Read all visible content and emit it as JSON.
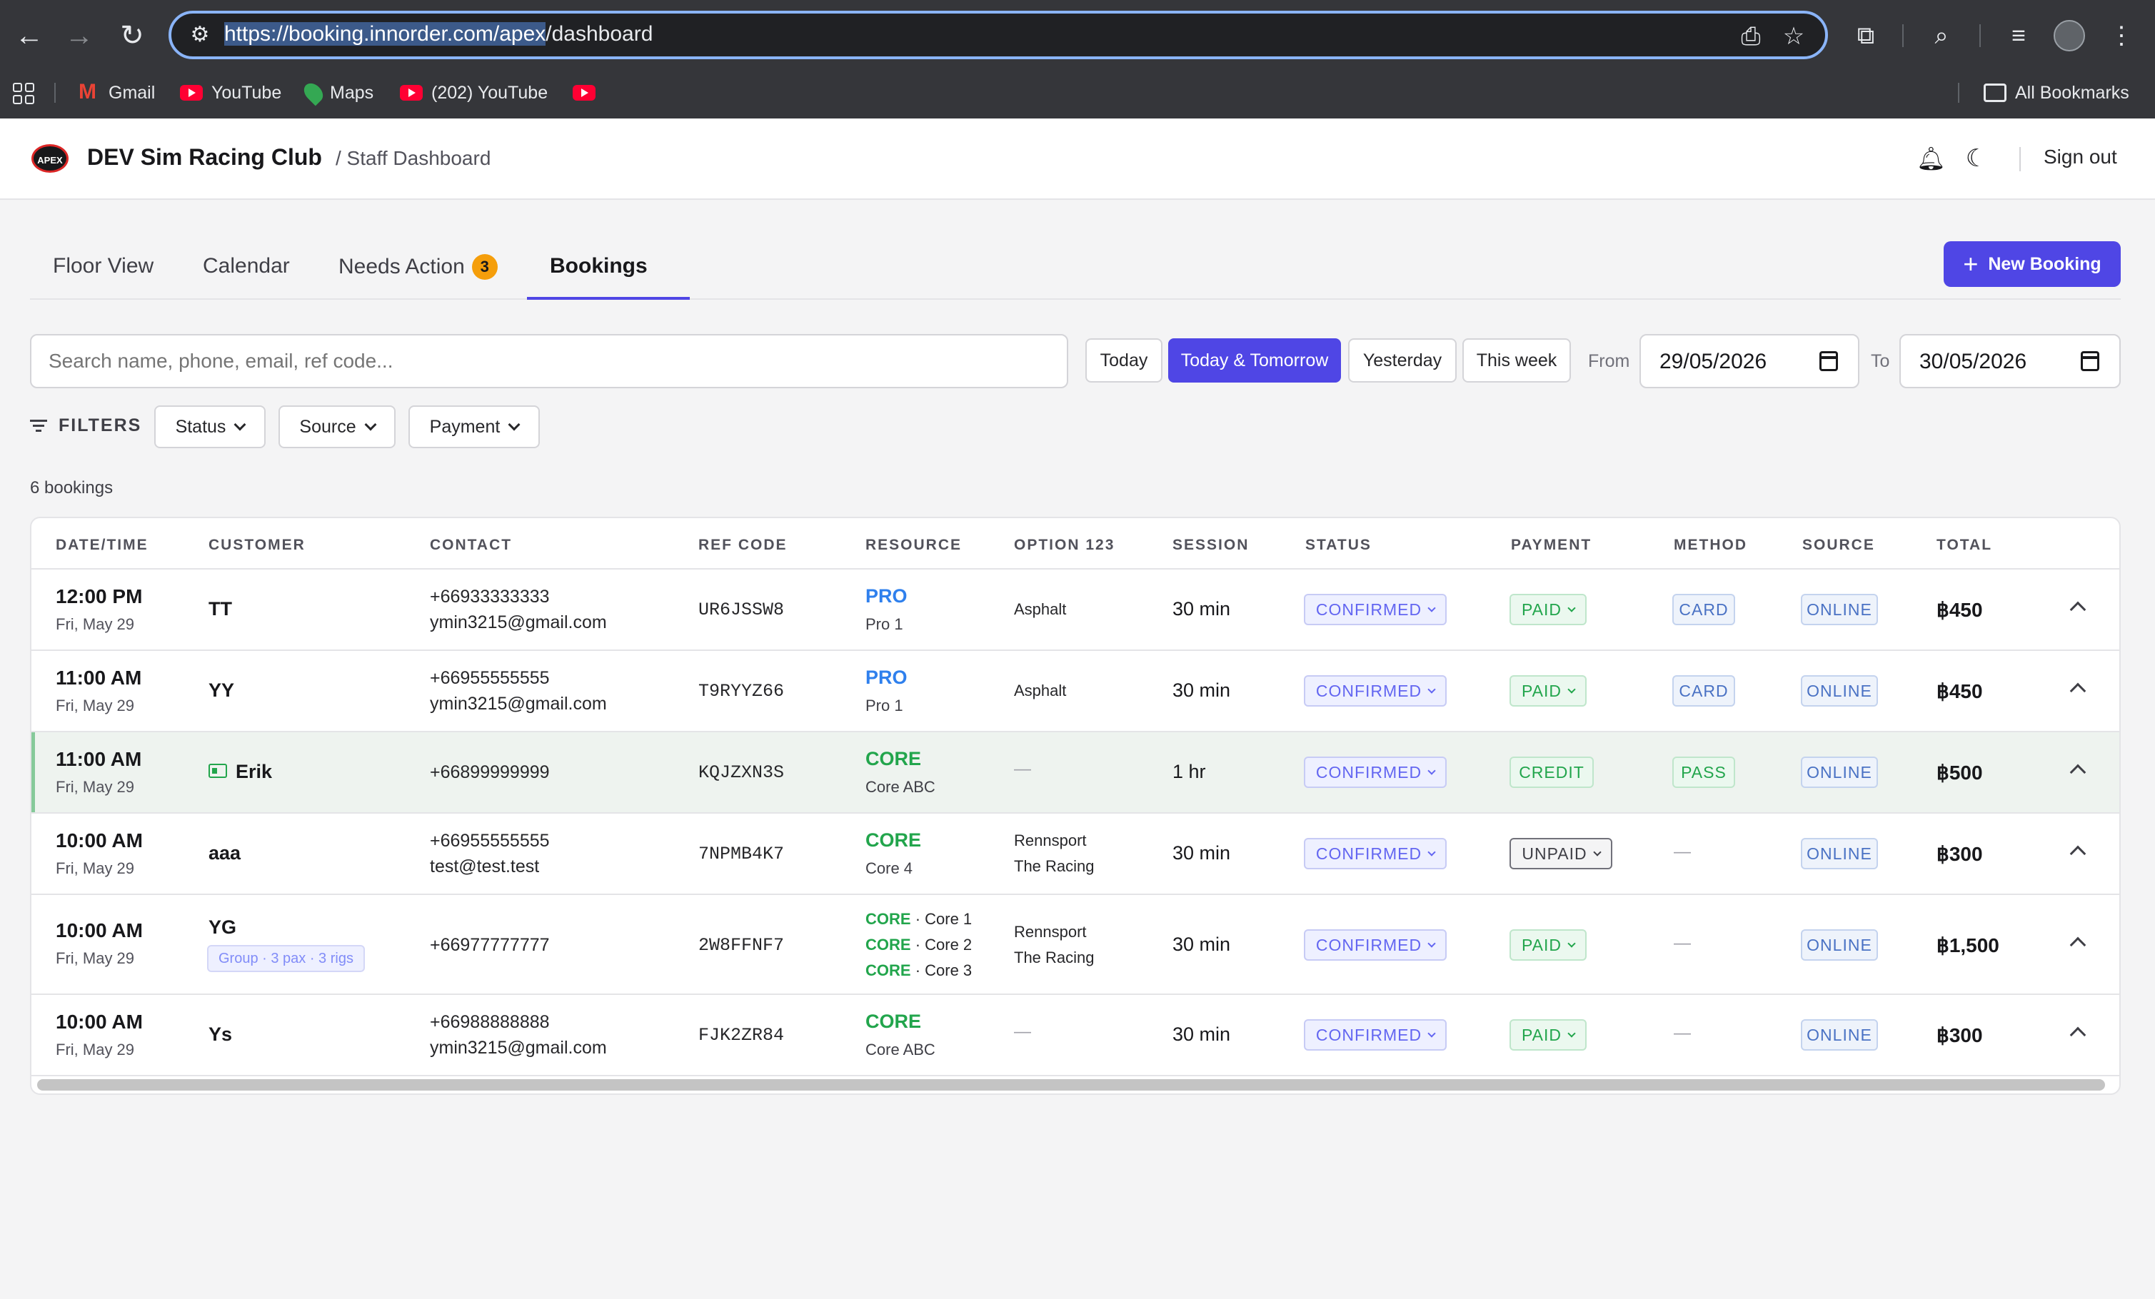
{
  "browser": {
    "url_selected": "https://booking.innorder.com/apex",
    "url_rest": "/dashboard",
    "bookmarks": [
      {
        "label": "Gmail",
        "icon": "gmail-icon"
      },
      {
        "label": "YouTube",
        "icon": "youtube-icon"
      },
      {
        "label": "Maps",
        "icon": "maps-icon"
      },
      {
        "label": "(202) YouTube",
        "icon": "youtube-icon"
      },
      {
        "label": "",
        "icon": "youtube-icon"
      }
    ],
    "all_bookmarks": "All Bookmarks"
  },
  "header": {
    "logo_text": "APEX",
    "club_name": "DEV Sim Racing Club",
    "breadcrumb": "/ Staff Dashboard",
    "sign_out": "Sign out"
  },
  "tabs": [
    {
      "label": "Floor View"
    },
    {
      "label": "Calendar"
    },
    {
      "label": "Needs Action",
      "badge": "3"
    },
    {
      "label": "Bookings",
      "active": true
    }
  ],
  "new_booking_label": "New Booking",
  "search": {
    "placeholder": "Search name, phone, email, ref code..."
  },
  "quick_ranges": [
    "Today",
    "Today & Tomorrow",
    "Yesterday",
    "This week"
  ],
  "date_range": {
    "from_label": "From",
    "from": "29/05/2026",
    "to_label": "To",
    "to": "30/05/2026"
  },
  "filters": {
    "label": "FILTERS",
    "buttons": [
      "Status",
      "Source",
      "Payment"
    ]
  },
  "count_text": "6 bookings",
  "table": {
    "columns": [
      "DATE/TIME",
      "CUSTOMER",
      "CONTACT",
      "REF CODE",
      "RESOURCE",
      "OPTION 123",
      "SESSION",
      "STATUS",
      "PAYMENT",
      "METHOD",
      "SOURCE",
      "TOTAL"
    ],
    "rows": [
      {
        "time": "12:00 PM",
        "date": "Fri, May 29",
        "customer": "TT",
        "phone": "+66933333333",
        "email": "ymin3215@gmail.com",
        "ref": "UR6JSSW8",
        "res_type": "PRO",
        "res_name": "Pro 1",
        "option1": "Asphalt",
        "option2": "",
        "session": "30 min",
        "status": "CONFIRMED",
        "payment": "PAID",
        "method": "CARD",
        "source": "ONLINE",
        "total": "฿450"
      },
      {
        "time": "11:00 AM",
        "date": "Fri, May 29",
        "customer": "YY",
        "phone": "+66955555555",
        "email": "ymin3215@gmail.com",
        "ref": "T9RYYZ66",
        "res_type": "PRO",
        "res_name": "Pro 1",
        "option1": "Asphalt",
        "option2": "",
        "session": "30 min",
        "status": "CONFIRMED",
        "payment": "PAID",
        "method": "CARD",
        "source": "ONLINE",
        "total": "฿450"
      },
      {
        "time": "11:00 AM",
        "date": "Fri, May 29",
        "customer": "Erik",
        "phone": "+66899999999",
        "email": "",
        "ref": "KQJZXN3S",
        "res_type": "CORE",
        "res_name": "Core ABC",
        "option1": "—",
        "option2": "",
        "session": "1 hr",
        "status": "CONFIRMED",
        "payment": "CREDIT",
        "method": "PASS",
        "source": "ONLINE",
        "total": "฿500"
      },
      {
        "time": "10:00 AM",
        "date": "Fri, May 29",
        "customer": "aaa",
        "phone": "+66955555555",
        "email": "test@test.test",
        "ref": "7NPMB4K7",
        "res_type": "CORE",
        "res_name": "Core 4",
        "option1": "Rennsport",
        "option2": "The Racing",
        "session": "30 min",
        "status": "CONFIRMED",
        "payment": "UNPAID",
        "method": "—",
        "source": "ONLINE",
        "total": "฿300"
      },
      {
        "time": "10:00 AM",
        "date": "Fri, May 29",
        "customer": "YG",
        "group": "Group · 3 pax · 3 rigs",
        "phone": "+66977777777",
        "email": "",
        "ref": "2W8FFNF7",
        "res_lines": [
          {
            "type": "CORE",
            "name": "· Core 1"
          },
          {
            "type": "CORE",
            "name": "· Core 2"
          },
          {
            "type": "CORE",
            "name": "· Core 3"
          }
        ],
        "option1": "Rennsport",
        "option2": "The Racing",
        "session": "30 min",
        "status": "CONFIRMED",
        "payment": "PAID",
        "method": "—",
        "source": "ONLINE",
        "total": "฿1,500"
      },
      {
        "time": "10:00 AM",
        "date": "Fri, May 29",
        "customer": "Ys",
        "phone": "+66988888888",
        "email": "ymin3215@gmail.com",
        "ref": "FJK2ZR84",
        "res_type": "CORE",
        "res_name": "Core ABC",
        "option1": "—",
        "option2": "",
        "session": "30 min",
        "status": "CONFIRMED",
        "payment": "PAID",
        "method": "—",
        "source": "ONLINE",
        "total": "฿300"
      }
    ]
  }
}
